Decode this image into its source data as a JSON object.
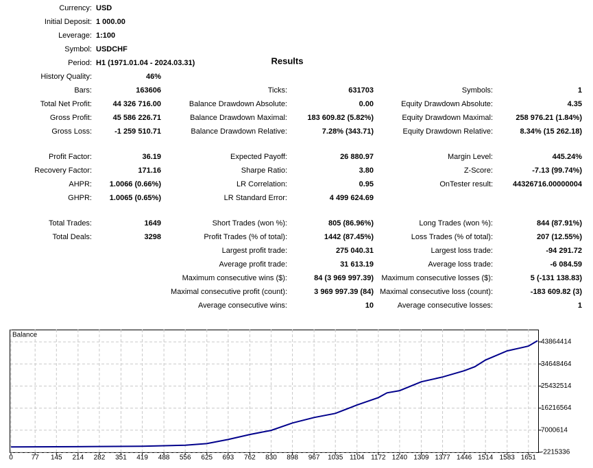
{
  "settings": [
    {
      "label": "Currency:",
      "value": "USD"
    },
    {
      "label": "Initial Deposit:",
      "value": "1 000.00"
    },
    {
      "label": "Leverage:",
      "value": "1:100"
    },
    {
      "label": "Symbol:",
      "value": "USDCHF"
    },
    {
      "label": "Period:",
      "value": "H1 (1971.01.04 - 2024.03.31)"
    }
  ],
  "history_quality": {
    "label": "History Quality:",
    "value": "46%"
  },
  "title": "Results",
  "groups": [
    [
      [
        {
          "label": "Bars:",
          "value": "163606"
        },
        {
          "label": "Ticks:",
          "value": "631703"
        },
        {
          "label": "Symbols:",
          "value": "1"
        }
      ],
      [
        {
          "label": "Total Net Profit:",
          "value": "44 326 716.00"
        },
        {
          "label": "Balance Drawdown Absolute:",
          "value": "0.00"
        },
        {
          "label": "Equity Drawdown Absolute:",
          "value": "4.35"
        }
      ],
      [
        {
          "label": "Gross Profit:",
          "value": "45 586 226.71"
        },
        {
          "label": "Balance Drawdown Maximal:",
          "value": "183 609.82 (5.82%)"
        },
        {
          "label": "Equity Drawdown Maximal:",
          "value": "258 976.21 (1.84%)"
        }
      ],
      [
        {
          "label": "Gross Loss:",
          "value": "-1 259 510.71"
        },
        {
          "label": "Balance Drawdown Relative:",
          "value": "7.28% (343.71)"
        },
        {
          "label": "Equity Drawdown Relative:",
          "value": "8.34% (15 262.18)"
        }
      ]
    ],
    [
      [
        {
          "label": "Profit Factor:",
          "value": "36.19"
        },
        {
          "label": "Expected Payoff:",
          "value": "26 880.97"
        },
        {
          "label": "Margin Level:",
          "value": "445.24%"
        }
      ],
      [
        {
          "label": "Recovery Factor:",
          "value": "171.16"
        },
        {
          "label": "Sharpe Ratio:",
          "value": "3.80"
        },
        {
          "label": "Z-Score:",
          "value": "-7.13 (99.74%)"
        }
      ],
      [
        {
          "label": "AHPR:",
          "value": "1.0066 (0.66%)"
        },
        {
          "label": "LR Correlation:",
          "value": "0.95"
        },
        {
          "label": "OnTester result:",
          "value": "44326716.00000004"
        }
      ],
      [
        {
          "label": "GHPR:",
          "value": "1.0065 (0.65%)"
        },
        {
          "label": "LR Standard Error:",
          "value": "4 499 624.69"
        },
        null
      ]
    ],
    [
      [
        {
          "label": "Total Trades:",
          "value": "1649"
        },
        {
          "label": "Short Trades (won %):",
          "value": "805 (86.96%)"
        },
        {
          "label": "Long Trades (won %):",
          "value": "844 (87.91%)"
        }
      ],
      [
        {
          "label": "Total Deals:",
          "value": "3298"
        },
        {
          "label": "Profit Trades (% of total):",
          "value": "1442 (87.45%)"
        },
        {
          "label": "Loss Trades (% of total):",
          "value": "207 (12.55%)"
        }
      ],
      [
        null,
        {
          "label": "Largest profit trade:",
          "value": "275 040.31"
        },
        {
          "label": "Largest loss trade:",
          "value": "-94 291.72"
        }
      ],
      [
        null,
        {
          "label": "Average profit trade:",
          "value": "31 613.19"
        },
        {
          "label": "Average loss trade:",
          "value": "-6 084.59"
        }
      ],
      [
        null,
        {
          "label": "Maximum consecutive wins ($):",
          "value": "84 (3 969 997.39)"
        },
        {
          "label": "Maximum consecutive losses ($):",
          "value": "5 (-131 138.83)"
        }
      ],
      [
        null,
        {
          "label": "Maximal consecutive profit (count):",
          "value": "3 969 997.39 (84)"
        },
        {
          "label": "Maximal consecutive loss (count):",
          "value": "-183 609.82 (3)"
        }
      ],
      [
        null,
        {
          "label": "Average consecutive wins:",
          "value": "10"
        },
        {
          "label": "Average consecutive losses:",
          "value": "1"
        }
      ]
    ]
  ],
  "chart_data": {
    "type": "line",
    "x": [
      0,
      214,
      419,
      556,
      625,
      693,
      762,
      830,
      898,
      967,
      1035,
      1104,
      1172,
      1200,
      1240,
      1309,
      1377,
      1446,
      1480,
      1514,
      1583,
      1620,
      1651,
      1680
    ],
    "series": [
      {
        "name": "Balance",
        "color": "#00008b",
        "values": [
          1000,
          100000,
          300000,
          700000,
          1400000,
          3100000,
          5200000,
          6900000,
          10000000,
          12300000,
          14000000,
          17500000,
          20600000,
          22600000,
          23500000,
          27200000,
          29200000,
          31800000,
          33500000,
          36300000,
          40100000,
          41200000,
          42100000,
          44327716
        ]
      }
    ],
    "xlim": [
      0,
      1682
    ],
    "ylim": [
      -2215336,
      49000000
    ],
    "xticks": [
      0,
      77,
      145,
      214,
      282,
      351,
      419,
      488,
      556,
      625,
      693,
      762,
      830,
      898,
      967,
      1035,
      1104,
      1172,
      1240,
      1309,
      1377,
      1446,
      1514,
      1583,
      1651
    ],
    "yticks": [
      -2215336,
      7000614,
      16216564,
      25432514,
      34648464,
      43864414
    ],
    "grid": true
  }
}
